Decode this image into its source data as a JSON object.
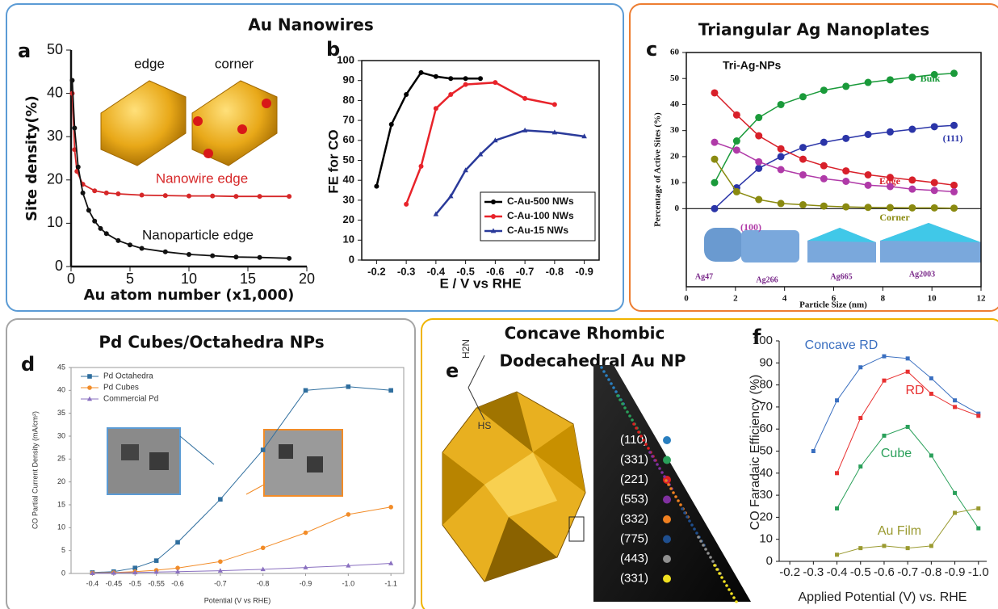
{
  "sections": [
    {
      "title": "Au Nanowires"
    },
    {
      "title": "Triangular Ag Nanoplates"
    },
    {
      "title": "Pd Cubes/Octahedra NPs"
    },
    {
      "title_lines": [
        "Concave Rhombic",
        "Dodecahedral Au NP"
      ]
    }
  ],
  "panel_e": {
    "panel": "e",
    "molecule": [
      "H2N",
      "HS"
    ],
    "facets": [
      {
        "label": "(110)",
        "color": "#2a7fc0"
      },
      {
        "label": "(331)",
        "color": "#2aa05a"
      },
      {
        "label": "(221)",
        "color": "#e02020"
      },
      {
        "label": "(553)",
        "color": "#8030a0"
      },
      {
        "label": "(332)",
        "color": "#f08020"
      },
      {
        "label": "(775)",
        "color": "#1f4f8f"
      },
      {
        "label": "(443)",
        "color": "#909090"
      },
      {
        "label": "(331)",
        "color": "#f0e020"
      }
    ]
  },
  "chart_data": [
    {
      "type": "line",
      "panel": "a",
      "xlabel": "Au atom number (x1,000)",
      "ylabel": "Site density(%)",
      "xlim": [
        0,
        20
      ],
      "xticks": [
        0,
        5,
        10,
        15,
        20
      ],
      "ylim": [
        0,
        50
      ],
      "yticks": [
        0,
        10,
        20,
        30,
        40,
        50
      ],
      "annotations": [
        "edge",
        "corner"
      ],
      "legend": "direct",
      "series": [
        {
          "name": "Nanowire edge",
          "color": "#d62728",
          "marker": "circle",
          "x": [
            0.1,
            0.3,
            0.5,
            1,
            2,
            3,
            4,
            6,
            8,
            10,
            12,
            14,
            16,
            18.5
          ],
          "values": [
            40,
            27,
            22,
            19,
            17.5,
            17,
            16.8,
            16.5,
            16.4,
            16.3,
            16.3,
            16.2,
            16.2,
            16.2
          ]
        },
        {
          "name": "Nanoparticle edge",
          "color": "#111111",
          "marker": "circle",
          "x": [
            0.1,
            0.3,
            0.6,
            1,
            1.5,
            2,
            2.5,
            3,
            4,
            5,
            6,
            8,
            10,
            12,
            14,
            16,
            18.5
          ],
          "values": [
            43,
            32,
            23,
            17,
            13,
            10.5,
            8.8,
            7.6,
            6,
            5,
            4.2,
            3.4,
            2.8,
            2.5,
            2.2,
            2.1,
            1.9
          ]
        }
      ]
    },
    {
      "type": "line",
      "panel": "b",
      "xlabel": "E / V vs RHE",
      "ylabel": "FE for CO",
      "xlim": [
        -0.15,
        -0.95
      ],
      "xticks": [
        -0.2,
        -0.3,
        -0.4,
        -0.5,
        -0.6,
        -0.7,
        -0.8,
        -0.9
      ],
      "ylim": [
        0,
        100
      ],
      "yticks": [
        0,
        10,
        20,
        30,
        40,
        50,
        60,
        70,
        80,
        90,
        100
      ],
      "legend": "lower right",
      "series": [
        {
          "name": "C-Au-500 NWs",
          "color": "#000000",
          "marker": "circle",
          "x": [
            -0.2,
            -0.25,
            -0.3,
            -0.35,
            -0.4,
            -0.45,
            -0.5,
            -0.55
          ],
          "values": [
            37,
            68,
            83,
            94,
            92,
            91,
            91,
            91
          ]
        },
        {
          "name": "C-Au-100 NWs",
          "color": "#e8232a",
          "marker": "circle",
          "x": [
            -0.3,
            -0.35,
            -0.4,
            -0.45,
            -0.5,
            -0.6,
            -0.7,
            -0.8
          ],
          "values": [
            28,
            47,
            76,
            83,
            88,
            89,
            81,
            78
          ]
        },
        {
          "name": "C-Au-15 NWs",
          "color": "#2a3a9a",
          "marker": "triangle",
          "x": [
            -0.4,
            -0.45,
            -0.5,
            -0.55,
            -0.6,
            -0.7,
            -0.8,
            -0.9
          ],
          "values": [
            23,
            32,
            45,
            53,
            60,
            65,
            64,
            62
          ]
        }
      ]
    },
    {
      "type": "line",
      "panel": "c",
      "xlabel": "Particle Size (nm)",
      "ylabel": "Percentage of Active Sites (%)",
      "xlim": [
        0,
        12
      ],
      "xticks": [
        0,
        2,
        4,
        6,
        8,
        10,
        12
      ],
      "ylim": [
        -30,
        60
      ],
      "yticks": [
        0,
        10,
        20,
        30,
        40,
        50,
        60
      ],
      "zero_line": true,
      "legend": "direct",
      "annotations": [
        "Tri-Ag-NPs",
        "Ag47",
        "Ag266",
        "Ag665",
        "Ag2003"
      ],
      "series": [
        {
          "name": "Bulk",
          "color": "#1a9a3a",
          "marker": "circle",
          "x": [
            1.15,
            2.05,
            2.95,
            3.85,
            4.75,
            5.6,
            6.5,
            7.4,
            8.3,
            9.2,
            10.1,
            10.9
          ],
          "values": [
            10,
            26,
            35,
            40,
            43,
            45.5,
            47,
            48.5,
            49.5,
            50.5,
            51.5,
            52
          ]
        },
        {
          "name": "(111)",
          "color": "#2b35a8",
          "marker": "circle",
          "x": [
            1.15,
            2.05,
            2.95,
            3.85,
            4.75,
            5.6,
            6.5,
            7.4,
            8.3,
            9.2,
            10.1,
            10.9
          ],
          "values": [
            0,
            8,
            15.5,
            20,
            23.5,
            25.5,
            27,
            28.5,
            29.5,
            30.5,
            31.5,
            32
          ]
        },
        {
          "name": "Edge",
          "color": "#d8202a",
          "marker": "circle",
          "x": [
            1.15,
            2.05,
            2.95,
            3.85,
            4.75,
            5.6,
            6.5,
            7.4,
            8.3,
            9.2,
            10.1,
            10.9
          ],
          "values": [
            44.5,
            36,
            28,
            23,
            19,
            16.5,
            14.5,
            13,
            12,
            11,
            10,
            9
          ]
        },
        {
          "name": "(100)",
          "color": "#b03aa8",
          "marker": "circle",
          "x": [
            1.15,
            2.05,
            2.95,
            3.85,
            4.75,
            5.6,
            6.5,
            7.4,
            8.3,
            9.2,
            10.1,
            10.9
          ],
          "values": [
            25.5,
            22.5,
            18,
            15,
            13,
            11.5,
            10.5,
            9,
            8.5,
            7.5,
            7,
            6.5
          ]
        },
        {
          "name": "Corner",
          "color": "#8a8a10",
          "marker": "circle",
          "x": [
            1.15,
            2.05,
            2.95,
            3.85,
            4.75,
            5.6,
            6.5,
            7.4,
            8.3,
            9.2,
            10.1,
            10.9
          ],
          "values": [
            19,
            6.5,
            3.5,
            2,
            1.5,
            1,
            0.7,
            0.5,
            0.4,
            0.3,
            0.3,
            0.2
          ]
        }
      ]
    },
    {
      "type": "line",
      "panel": "d",
      "xlabel": "Potential (V vs RHE)",
      "ylabel": "CO Partial Current Density (mA/cm²)",
      "xlim": [
        -0.35,
        -1.13
      ],
      "xticks": [
        -0.4,
        -0.45,
        -0.5,
        -0.55,
        -0.6,
        -0.7,
        -0.8,
        -0.9,
        {
          "value": -1,
          "label": "-1.0"
        },
        -1.1
      ],
      "ylim": [
        0,
        45
      ],
      "yticks": [
        0,
        5,
        10,
        15,
        20,
        25,
        30,
        35,
        40,
        45
      ],
      "legend": "upper left",
      "series": [
        {
          "name": "Pd Octahedra",
          "color": "#2f6e9e",
          "marker": "square",
          "x": [
            -0.4,
            -0.45,
            -0.5,
            -0.55,
            -0.6,
            -0.7,
            -0.8,
            -0.9,
            -1,
            -1.1
          ],
          "values": [
            0.2,
            0.4,
            1.2,
            2.8,
            6.8,
            16.2,
            27,
            40,
            40.8,
            40
          ]
        },
        {
          "name": "Pd Cubes",
          "color": "#f28c28",
          "marker": "circle",
          "x": [
            -0.4,
            -0.45,
            -0.5,
            -0.55,
            -0.6,
            -0.7,
            -0.8,
            -0.9,
            -1,
            -1.1
          ],
          "values": [
            0.1,
            0.2,
            0.4,
            0.7,
            1.2,
            2.6,
            5.6,
            8.9,
            12.9,
            14.5
          ]
        },
        {
          "name": "Commercial Pd",
          "color": "#8a70c0",
          "marker": "triangle",
          "x": [
            -0.4,
            -0.45,
            -0.5,
            -0.55,
            -0.6,
            -0.7,
            -0.8,
            -0.9,
            -1,
            -1.1
          ],
          "values": [
            0.05,
            0.1,
            0.2,
            0.3,
            0.4,
            0.6,
            0.9,
            1.3,
            1.7,
            2.2
          ]
        }
      ]
    },
    {
      "type": "line",
      "panel": "f",
      "xlabel": "Applied Potential (V) vs. RHE",
      "ylabel": "CO Faradaic Efficiency (%)",
      "xlim": [
        -0.155,
        -1.035
      ],
      "xticks": [
        -0.2,
        -0.3,
        -0.4,
        -0.5,
        -0.6,
        -0.7,
        -0.8,
        -0.9,
        {
          "value": -1,
          "label": "-1.0"
        }
      ],
      "ylim": [
        0,
        100
      ],
      "yticks": [
        0,
        10,
        20,
        30,
        40,
        50,
        60,
        70,
        80,
        90,
        100
      ],
      "legend": "direct",
      "series": [
        {
          "name": "Concave RD",
          "color": "#3a6fc0",
          "marker": "square",
          "x": [
            -0.3,
            -0.4,
            -0.5,
            -0.6,
            -0.7,
            -0.8,
            -0.9,
            -1
          ],
          "values": [
            50,
            73,
            88,
            93,
            92,
            83,
            73,
            67
          ]
        },
        {
          "name": "RD",
          "color": "#e83030",
          "marker": "square",
          "x": [
            -0.4,
            -0.5,
            -0.6,
            -0.7,
            -0.8,
            -0.9,
            -1
          ],
          "values": [
            40,
            65,
            82,
            86,
            76,
            70,
            66
          ]
        },
        {
          "name": "Cube",
          "color": "#2aa05a",
          "marker": "square",
          "x": [
            -0.4,
            -0.5,
            -0.6,
            -0.7,
            -0.8,
            -0.9,
            -1
          ],
          "values": [
            24,
            43,
            57,
            61,
            48,
            31,
            15
          ]
        },
        {
          "name": "Au Film",
          "color": "#9a9a30",
          "marker": "square",
          "x": [
            -0.4,
            -0.5,
            -0.6,
            -0.7,
            -0.8,
            -0.9,
            -1
          ],
          "values": [
            3,
            6,
            7,
            6,
            7,
            22,
            24
          ]
        }
      ]
    }
  ]
}
